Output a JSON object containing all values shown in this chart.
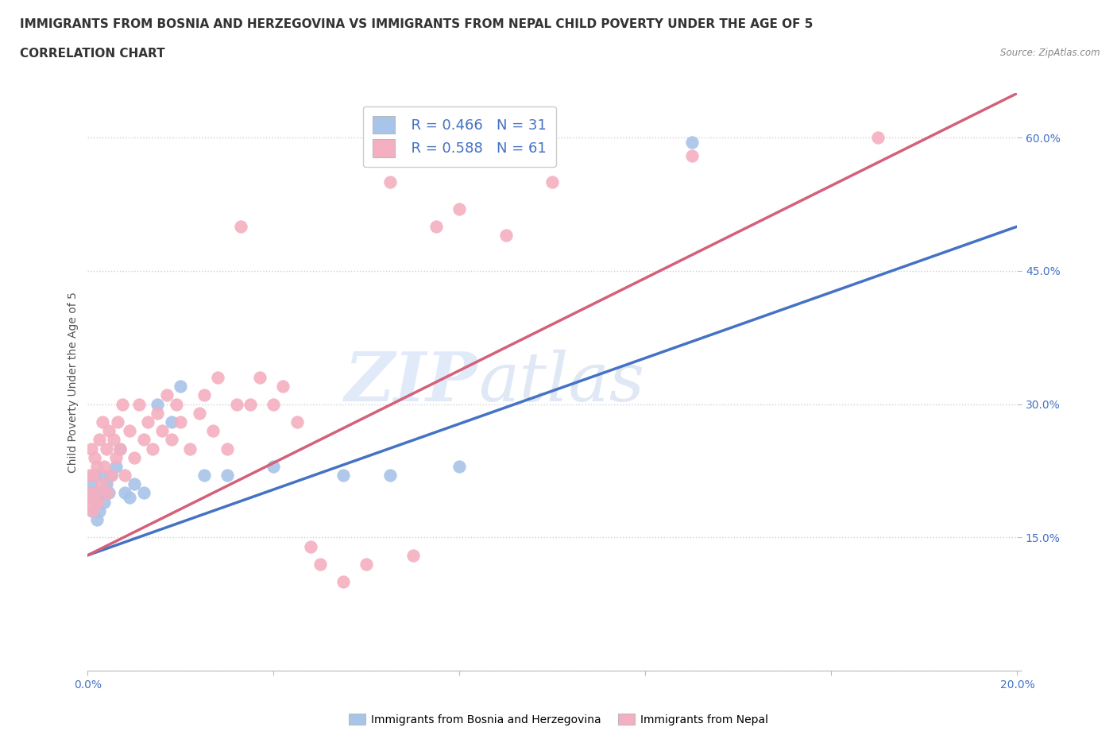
{
  "title_line1": "IMMIGRANTS FROM BOSNIA AND HERZEGOVINA VS IMMIGRANTS FROM NEPAL CHILD POVERTY UNDER THE AGE OF 5",
  "title_line2": "CORRELATION CHART",
  "source_text": "Source: ZipAtlas.com",
  "ylabel": "Child Poverty Under the Age of 5",
  "xlim": [
    0.0,
    0.2
  ],
  "ylim": [
    0.0,
    0.65
  ],
  "x_ticks": [
    0.0,
    0.04,
    0.08,
    0.12,
    0.16,
    0.2
  ],
  "y_ticks": [
    0.0,
    0.15,
    0.3,
    0.45,
    0.6
  ],
  "bosnia_color": "#a8c4e8",
  "nepal_color": "#f4afc0",
  "bosnia_line_color": "#4472c4",
  "nepal_line_color": "#d4607a",
  "bosnia_R": 0.466,
  "bosnia_N": 31,
  "nepal_R": 0.588,
  "nepal_N": 61,
  "watermark_zip": "ZIP",
  "watermark_atlas": "atlas",
  "grid_color": "#d0d0d0",
  "bg_color": "#ffffff",
  "title_fontsize": 11,
  "axis_label_fontsize": 10,
  "tick_fontsize": 10,
  "tick_color": "#4472c4",
  "legend_fontsize": 13,
  "bosnia_scatter_x": [
    0.0005,
    0.0008,
    0.001,
    0.0012,
    0.0015,
    0.0018,
    0.002,
    0.0022,
    0.0025,
    0.003,
    0.0032,
    0.0035,
    0.004,
    0.0045,
    0.005,
    0.006,
    0.007,
    0.008,
    0.009,
    0.01,
    0.012,
    0.015,
    0.018,
    0.02,
    0.025,
    0.03,
    0.04,
    0.055,
    0.065,
    0.08,
    0.13
  ],
  "bosnia_scatter_y": [
    0.195,
    0.21,
    0.18,
    0.2,
    0.22,
    0.19,
    0.17,
    0.2,
    0.18,
    0.22,
    0.2,
    0.19,
    0.21,
    0.2,
    0.22,
    0.23,
    0.25,
    0.2,
    0.195,
    0.21,
    0.2,
    0.3,
    0.28,
    0.32,
    0.22,
    0.22,
    0.23,
    0.22,
    0.22,
    0.23,
    0.595
  ],
  "nepal_scatter_x": [
    0.0003,
    0.0005,
    0.0007,
    0.0008,
    0.001,
    0.0012,
    0.0015,
    0.0018,
    0.002,
    0.0022,
    0.0025,
    0.003,
    0.0032,
    0.0035,
    0.004,
    0.0042,
    0.0045,
    0.005,
    0.0055,
    0.006,
    0.0065,
    0.007,
    0.0075,
    0.008,
    0.009,
    0.01,
    0.011,
    0.012,
    0.013,
    0.014,
    0.015,
    0.016,
    0.017,
    0.018,
    0.019,
    0.02,
    0.022,
    0.024,
    0.025,
    0.027,
    0.028,
    0.03,
    0.032,
    0.033,
    0.035,
    0.037,
    0.04,
    0.042,
    0.045,
    0.048,
    0.05,
    0.055,
    0.06,
    0.065,
    0.07,
    0.075,
    0.08,
    0.09,
    0.1,
    0.13,
    0.17
  ],
  "nepal_scatter_y": [
    0.2,
    0.22,
    0.19,
    0.25,
    0.18,
    0.22,
    0.24,
    0.2,
    0.23,
    0.19,
    0.26,
    0.21,
    0.28,
    0.23,
    0.25,
    0.2,
    0.27,
    0.22,
    0.26,
    0.24,
    0.28,
    0.25,
    0.3,
    0.22,
    0.27,
    0.24,
    0.3,
    0.26,
    0.28,
    0.25,
    0.29,
    0.27,
    0.31,
    0.26,
    0.3,
    0.28,
    0.25,
    0.29,
    0.31,
    0.27,
    0.33,
    0.25,
    0.3,
    0.5,
    0.3,
    0.33,
    0.3,
    0.32,
    0.28,
    0.14,
    0.12,
    0.1,
    0.12,
    0.55,
    0.13,
    0.5,
    0.52,
    0.49,
    0.55,
    0.58,
    0.6
  ]
}
